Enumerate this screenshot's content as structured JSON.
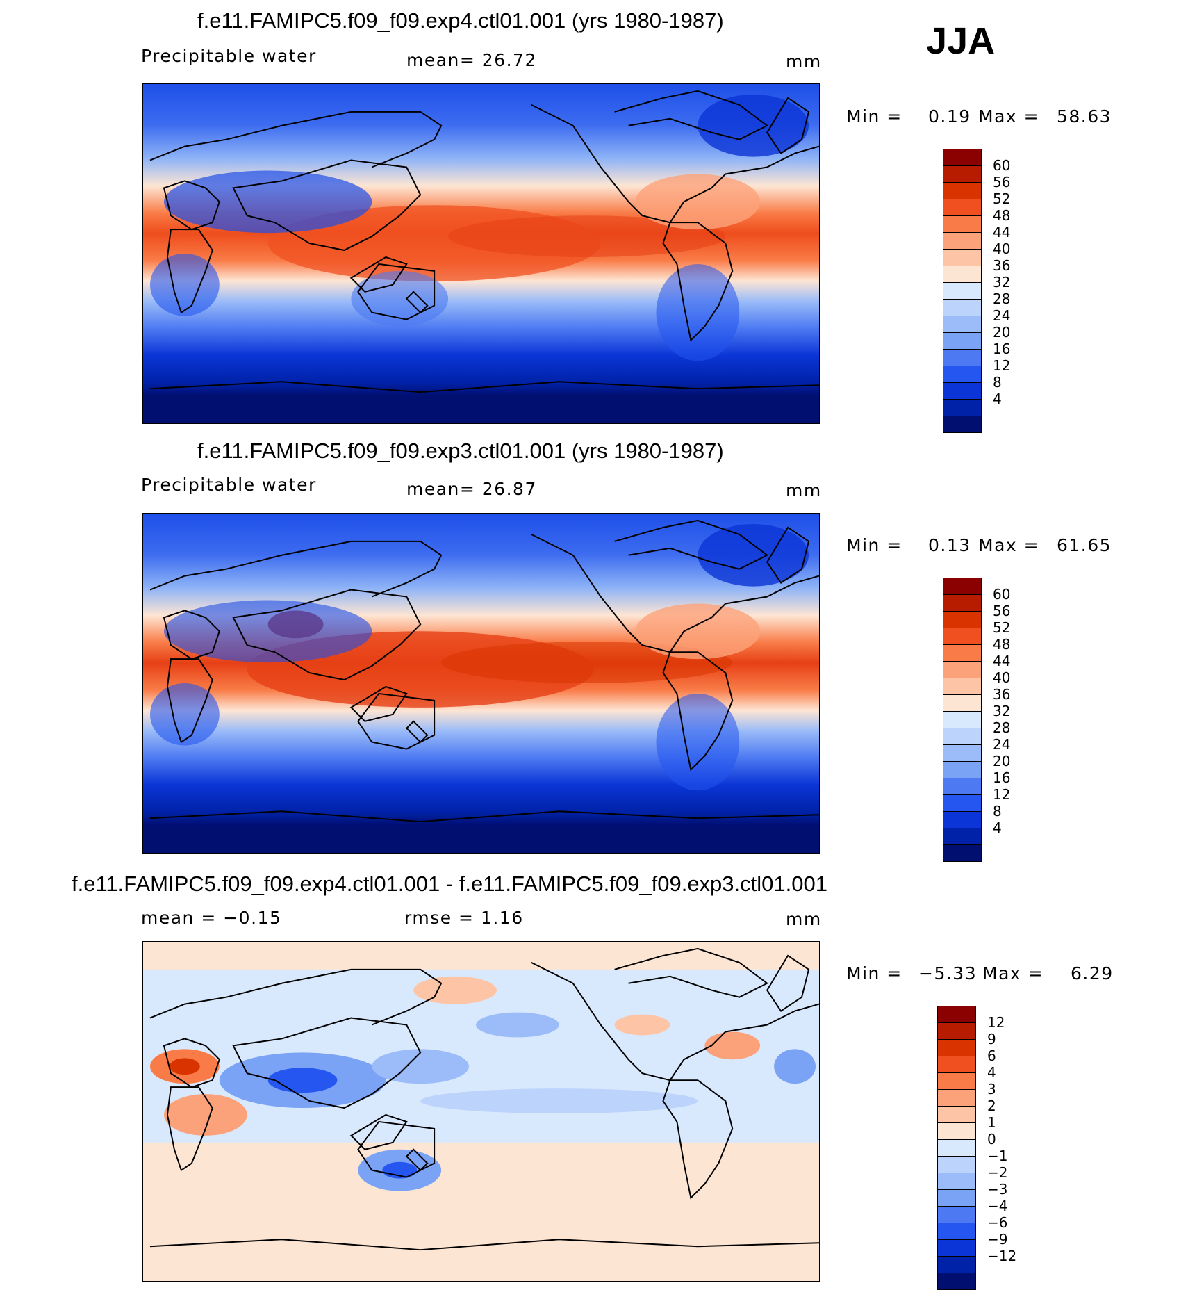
{
  "season": "JJA",
  "panels": [
    {
      "id": "exp4",
      "title": "f.e11.FAMIPC5.f09_f09.exp4.ctl01.001 (yrs 1980-1987)",
      "variable": "Precipitable water",
      "stat_text": "mean=   26.72",
      "units": "mm",
      "min_label": "Min =",
      "min_value": "0.19",
      "max_label": "Max =",
      "max_value": "58.63",
      "colorbar_ticks": [
        "60",
        "56",
        "52",
        "48",
        "44",
        "40",
        "36",
        "32",
        "28",
        "24",
        "20",
        "16",
        "12",
        "8",
        "4"
      ],
      "colorbar_colors": [
        "#8b0000",
        "#b81c00",
        "#d93400",
        "#f05020",
        "#f97c48",
        "#fca27a",
        "#fdc4a6",
        "#fde5d3",
        "#d9e9fd",
        "#bcd3fb",
        "#9bbcf8",
        "#7aa2f5",
        "#4d7af2",
        "#2556ef",
        "#0b35d6",
        "#0022a8",
        "#000f70"
      ]
    },
    {
      "id": "exp3",
      "title": "f.e11.FAMIPC5.f09_f09.exp3.ctl01.001 (yrs 1980-1987)",
      "variable": "Precipitable water",
      "stat_text": "mean=   26.87",
      "units": "mm",
      "min_label": "Min =",
      "min_value": "0.13",
      "max_label": "Max =",
      "max_value": "61.65",
      "colorbar_ticks": [
        "60",
        "56",
        "52",
        "48",
        "44",
        "40",
        "36",
        "32",
        "28",
        "24",
        "20",
        "16",
        "12",
        "8",
        "4"
      ],
      "colorbar_colors": [
        "#8b0000",
        "#b81c00",
        "#d93400",
        "#f05020",
        "#f97c48",
        "#fca27a",
        "#fdc4a6",
        "#fde5d3",
        "#d9e9fd",
        "#bcd3fb",
        "#9bbcf8",
        "#7aa2f5",
        "#4d7af2",
        "#2556ef",
        "#0b35d6",
        "#0022a8",
        "#000f70"
      ]
    },
    {
      "id": "diff",
      "title": "f.e11.FAMIPC5.f09_f09.exp4.ctl01.001 - f.e11.FAMIPC5.f09_f09.exp3.ctl01.001",
      "stat_text": "mean =   −0.15",
      "rmse_text": "rmse =    1.16",
      "units": "mm",
      "min_label": "Min =",
      "min_value": "−5.33",
      "max_label": "Max =",
      "max_value": "6.29",
      "colorbar_ticks": [
        "12",
        "9",
        "6",
        "4",
        "3",
        "2",
        "1",
        "0",
        "−1",
        "−2",
        "−3",
        "−4",
        "−6",
        "−9",
        "−12"
      ],
      "colorbar_colors": [
        "#8b0000",
        "#b81c00",
        "#d93400",
        "#f05020",
        "#f97c48",
        "#fca27a",
        "#fdc4a6",
        "#fde5d3",
        "#d9e9fd",
        "#bcd3fb",
        "#9bbcf8",
        "#7aa2f5",
        "#4d7af2",
        "#2556ef",
        "#0b35d6",
        "#0022a8",
        "#000f70"
      ]
    }
  ]
}
